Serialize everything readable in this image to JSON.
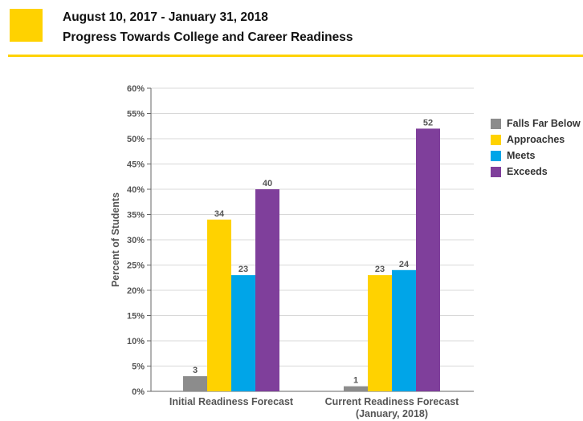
{
  "header": {
    "date_range": "August 10, 2017 - January 31, 2018",
    "title": "Progress Towards College and Career Readiness"
  },
  "colors": {
    "brand_yellow": "#ffd200",
    "grid": "#d8d8d8",
    "axis": "#666666"
  },
  "chart_data": {
    "type": "bar",
    "ylabel": "Percent of Students",
    "xlabel": "",
    "ylim": [
      0,
      60
    ],
    "y_ticks": [
      "0%",
      "5%",
      "10%",
      "15%",
      "20%",
      "25%",
      "30%",
      "35%",
      "40%",
      "45%",
      "50%",
      "55%",
      "60%"
    ],
    "grid": true,
    "legend_position": "right",
    "categories": [
      [
        "Initial Readiness Forecast"
      ],
      [
        "Current Readiness Forecast",
        "(January, 2018)"
      ]
    ],
    "series": [
      {
        "name": "Falls Far Below",
        "color": "#8c8c8c",
        "values": [
          3,
          1
        ]
      },
      {
        "name": "Approaches",
        "color": "#ffd200",
        "values": [
          34,
          23
        ]
      },
      {
        "name": "Meets",
        "color": "#00a5e8",
        "values": [
          23,
          24
        ]
      },
      {
        "name": "Exceeds",
        "color": "#7f3f9b",
        "values": [
          40,
          52
        ]
      }
    ]
  }
}
